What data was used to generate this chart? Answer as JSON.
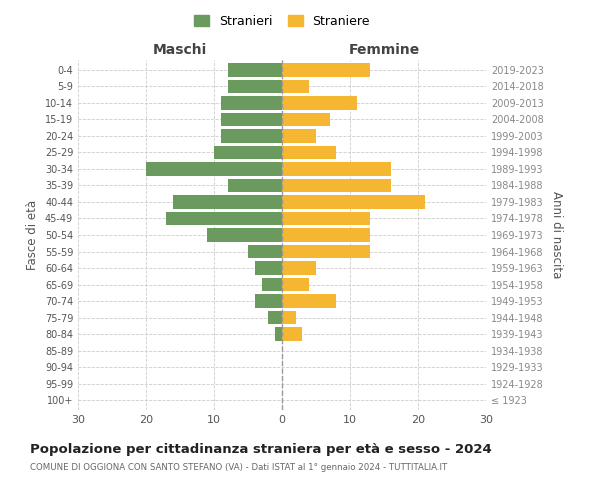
{
  "age_groups": [
    "100+",
    "95-99",
    "90-94",
    "85-89",
    "80-84",
    "75-79",
    "70-74",
    "65-69",
    "60-64",
    "55-59",
    "50-54",
    "45-49",
    "40-44",
    "35-39",
    "30-34",
    "25-29",
    "20-24",
    "15-19",
    "10-14",
    "5-9",
    "0-4"
  ],
  "birth_years": [
    "≤ 1923",
    "1924-1928",
    "1929-1933",
    "1934-1938",
    "1939-1943",
    "1944-1948",
    "1949-1953",
    "1954-1958",
    "1959-1963",
    "1964-1968",
    "1969-1973",
    "1974-1978",
    "1979-1983",
    "1984-1988",
    "1989-1993",
    "1994-1998",
    "1999-2003",
    "2004-2008",
    "2009-2013",
    "2014-2018",
    "2019-2023"
  ],
  "males": [
    0,
    0,
    0,
    0,
    1,
    2,
    4,
    3,
    4,
    5,
    11,
    17,
    16,
    8,
    20,
    10,
    9,
    9,
    9,
    8,
    8
  ],
  "females": [
    0,
    0,
    0,
    0,
    3,
    2,
    8,
    4,
    5,
    13,
    13,
    13,
    21,
    16,
    16,
    8,
    5,
    7,
    11,
    4,
    13
  ],
  "male_color": "#6b9a5e",
  "female_color": "#f5b731",
  "title": "Popolazione per cittadinanza straniera per età e sesso - 2024",
  "subtitle": "COMUNE DI OGGIONA CON SANTO STEFANO (VA) - Dati ISTAT al 1° gennaio 2024 - TUTTITALIA.IT",
  "xlabel_left": "Maschi",
  "xlabel_right": "Femmine",
  "ylabel_left": "Fasce di età",
  "ylabel_right": "Anni di nascita",
  "legend_male": "Stranieri",
  "legend_female": "Straniere",
  "xlim": 30,
  "background_color": "#ffffff",
  "grid_color": "#cccccc",
  "bar_height": 0.8
}
